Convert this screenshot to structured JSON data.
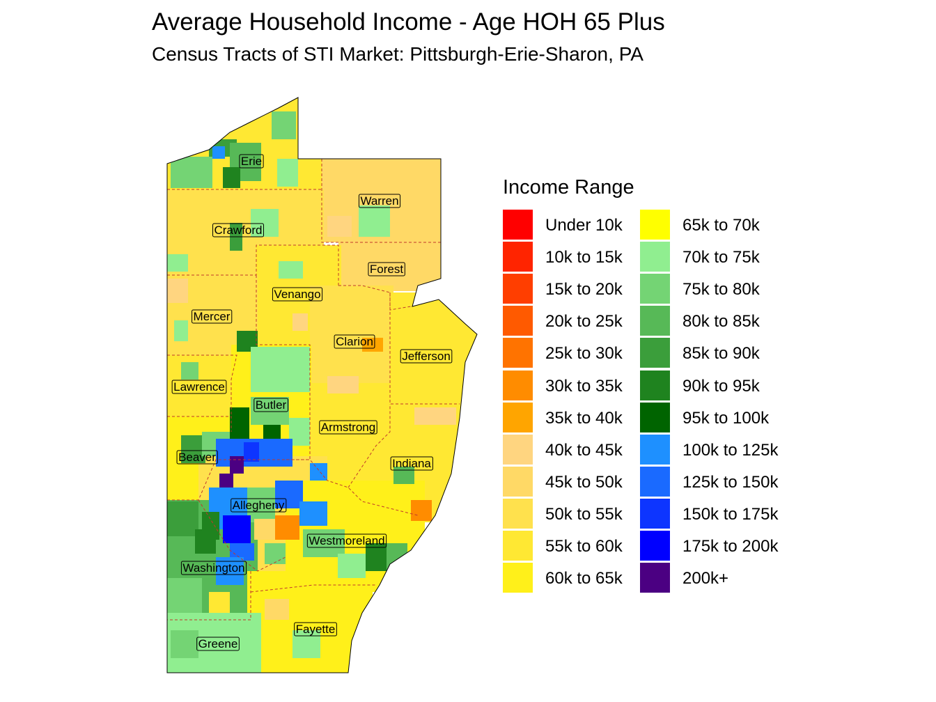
{
  "title": "Average Household Income - Age HOH 65 Plus",
  "subtitle": "Census Tracts of STI Market: Pittsburgh-Erie-Sharon, PA",
  "legend": {
    "title": "Income Range",
    "items": [
      {
        "label": "Under 10k",
        "color": "#FF0000"
      },
      {
        "label": "10k to 15k",
        "color": "#FF2400"
      },
      {
        "label": "15k to 20k",
        "color": "#FF3E00"
      },
      {
        "label": "20k to 25k",
        "color": "#FF5A00"
      },
      {
        "label": "25k to 30k",
        "color": "#FF7300"
      },
      {
        "label": "30k to 35k",
        "color": "#FF8C00"
      },
      {
        "label": "35k to 40k",
        "color": "#FFA500"
      },
      {
        "label": "40k to 45k",
        "color": "#FFD580"
      },
      {
        "label": "45k to 50k",
        "color": "#FFD966"
      },
      {
        "label": "50k to 55k",
        "color": "#FFE14D"
      },
      {
        "label": "55k to 60k",
        "color": "#FFE833"
      },
      {
        "label": "60k to 65k",
        "color": "#FFF01A"
      },
      {
        "label": "65k to 70k",
        "color": "#FFFF00"
      },
      {
        "label": "70k to 75k",
        "color": "#90EE90"
      },
      {
        "label": "75k to 80k",
        "color": "#74D474"
      },
      {
        "label": "80k to 85k",
        "color": "#57B957"
      },
      {
        "label": "85k to 90k",
        "color": "#3B9E3B"
      },
      {
        "label": "90k to 95k",
        "color": "#1F831F"
      },
      {
        "label": "95k to 100k",
        "color": "#006400"
      },
      {
        "label": "100k to 125k",
        "color": "#1E90FF"
      },
      {
        "label": "125k to 150k",
        "color": "#1A6AFF"
      },
      {
        "label": "150k to 175k",
        "color": "#0D35FF"
      },
      {
        "label": "175k to 200k",
        "color": "#0000FF"
      },
      {
        "label": "200k+",
        "color": "#4B0082"
      }
    ]
  },
  "counties": [
    {
      "name": "Erie",
      "dominant_color": "#74D474"
    },
    {
      "name": "Warren",
      "dominant_color": "#FFD966"
    },
    {
      "name": "Crawford",
      "dominant_color": "#FFE14D"
    },
    {
      "name": "Forest",
      "dominant_color": "#FFD966"
    },
    {
      "name": "Venango",
      "dominant_color": "#FFE833"
    },
    {
      "name": "Mercer",
      "dominant_color": "#FFE14D"
    },
    {
      "name": "Clarion",
      "dominant_color": "#FFE14D"
    },
    {
      "name": "Jefferson",
      "dominant_color": "#FFE833"
    },
    {
      "name": "Lawrence",
      "dominant_color": "#FFE833"
    },
    {
      "name": "Butler",
      "dominant_color": "#FFF01A"
    },
    {
      "name": "Armstrong",
      "dominant_color": "#FFE833"
    },
    {
      "name": "Indiana",
      "dominant_color": "#FFE833"
    },
    {
      "name": "Beaver",
      "dominant_color": "#FFF01A"
    },
    {
      "name": "Allegheny",
      "dominant_color": "#1A6AFF"
    },
    {
      "name": "Westmoreland",
      "dominant_color": "#FFF01A"
    },
    {
      "name": "Washington",
      "dominant_color": "#57B957"
    },
    {
      "name": "Fayette",
      "dominant_color": "#FFF01A"
    },
    {
      "name": "Greene",
      "dominant_color": "#74D474"
    }
  ]
}
